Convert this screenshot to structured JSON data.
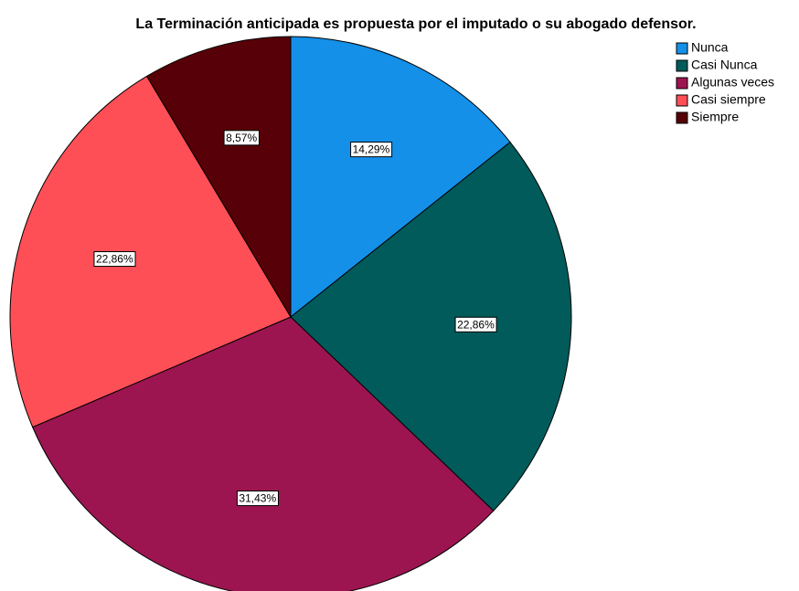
{
  "chart_data": {
    "type": "pie",
    "title": "La Terminación anticipada es propuesta por el imputado o su abogado defensor.",
    "categories": [
      "Nunca",
      "Casi Nunca",
      "Algunas veces",
      "Casi siempre",
      "Siempre"
    ],
    "values": [
      14.29,
      22.86,
      31.43,
      22.86,
      8.57
    ],
    "value_labels": [
      "14,29%",
      "22,86%",
      "31,43%",
      "22,86%",
      "8,57%"
    ],
    "colors": [
      "#1490e8",
      "#015b5b",
      "#9c1550",
      "#fe4f57",
      "#570007"
    ],
    "legend": "top-right"
  }
}
